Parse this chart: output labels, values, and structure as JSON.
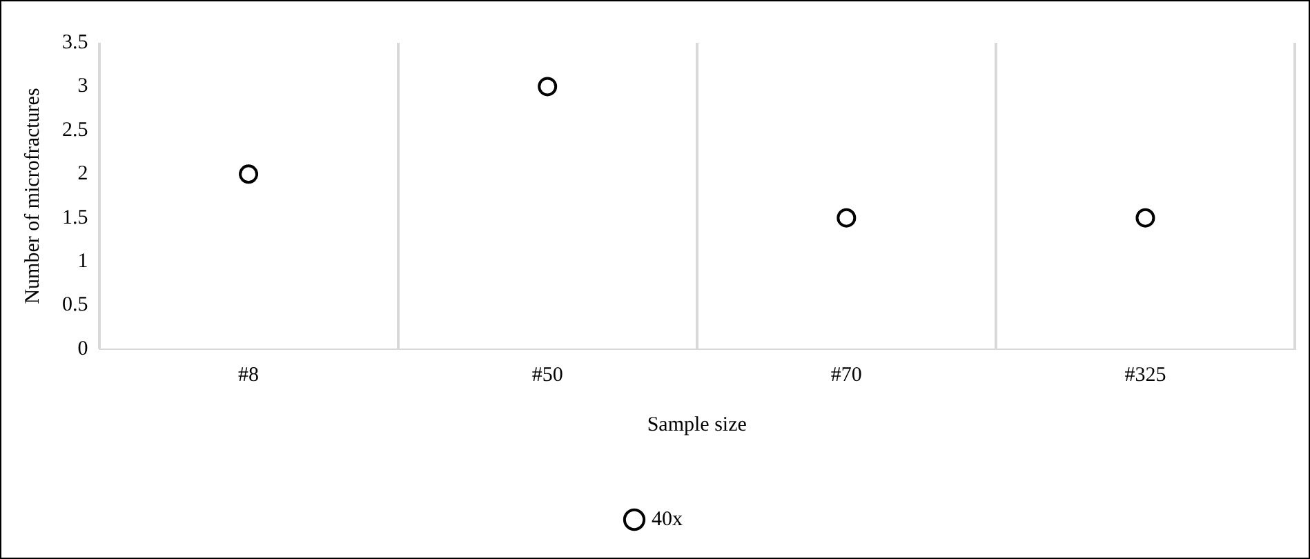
{
  "chart_data": {
    "type": "scatter",
    "xlabel": "Sample size",
    "ylabel": "Number of microfractures",
    "categories": [
      "#8",
      "#50",
      "#70",
      "#325"
    ],
    "series": [
      {
        "name": "40x",
        "color": "#000000",
        "values": [
          2,
          3,
          1.5,
          1.5
        ]
      }
    ],
    "ylim": [
      0,
      3.5
    ],
    "yticks": [
      0,
      0.5,
      1,
      1.5,
      2,
      2.5,
      3,
      3.5
    ],
    "grid": "x",
    "legend": "bottom",
    "marker": "circle"
  }
}
